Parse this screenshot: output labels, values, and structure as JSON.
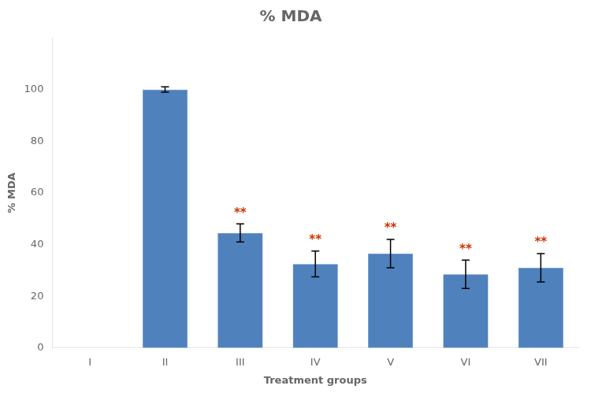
{
  "chart_data": {
    "type": "bar",
    "title": "% MDA",
    "xlabel": "Treatment groups",
    "ylabel": "% MDA",
    "categories": [
      "I",
      "II",
      "III",
      "IV",
      "V",
      "VI",
      "VII"
    ],
    "values": [
      0,
      100,
      44.5,
      32.5,
      36.5,
      28.5,
      31.0
    ],
    "errors": [
      0,
      1.0,
      3.5,
      5.0,
      5.5,
      5.5,
      5.5
    ],
    "color": "#4f81bd",
    "annotations": [
      {
        "x": "III",
        "text": "**",
        "color": "#cc3300"
      },
      {
        "x": "IV",
        "text": "**",
        "color": "#cc3300"
      },
      {
        "x": "V",
        "text": "**",
        "color": "#cc3300"
      },
      {
        "x": "VI",
        "text": "**",
        "color": "#cc3300"
      },
      {
        "x": "VII",
        "text": "**",
        "color": "#cc3300"
      }
    ],
    "ylim": [
      0,
      120
    ],
    "yticks": [
      0,
      20,
      40,
      60,
      80,
      100
    ],
    "grid": false,
    "legend": false
  }
}
